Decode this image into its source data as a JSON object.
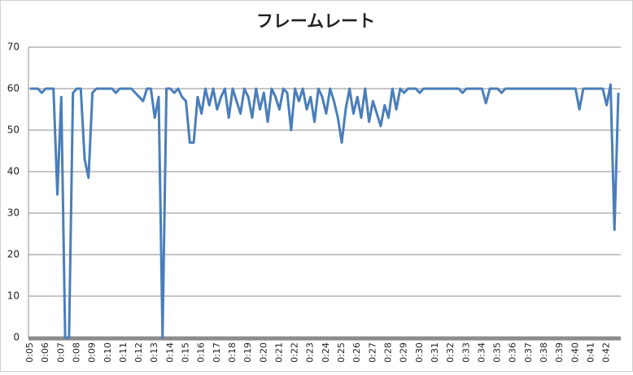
{
  "chart_data": {
    "type": "line",
    "title": "フレームレート",
    "categories": [
      "0:05",
      null,
      null,
      null,
      "0:06",
      null,
      null,
      null,
      "0:07",
      null,
      null,
      null,
      "0:08",
      null,
      null,
      null,
      "0:09",
      null,
      null,
      null,
      "0:10",
      null,
      null,
      null,
      "0:11",
      null,
      null,
      null,
      "0:12",
      null,
      null,
      null,
      "0:13",
      null,
      null,
      null,
      "0:14",
      null,
      null,
      null,
      "0:15",
      null,
      null,
      null,
      "0:16",
      null,
      null,
      null,
      "0:17",
      null,
      null,
      null,
      "0:18",
      null,
      null,
      null,
      "0:19",
      null,
      null,
      null,
      "0:20",
      null,
      null,
      null,
      "0:21",
      null,
      null,
      null,
      "0:22",
      null,
      null,
      null,
      "0:23",
      null,
      null,
      null,
      "0:24",
      null,
      null,
      null,
      "0:25",
      null,
      null,
      null,
      "0:26",
      null,
      null,
      null,
      "0:27",
      null,
      null,
      null,
      "0:28",
      null,
      null,
      null,
      "0:29",
      null,
      null,
      null,
      "0:30",
      null,
      null,
      null,
      "0:31",
      null,
      null,
      null,
      "0:32",
      null,
      null,
      null,
      "0:33",
      null,
      null,
      null,
      "0:34",
      null,
      null,
      null,
      "0:35",
      null,
      null,
      null,
      "0:36",
      null,
      null,
      null,
      "0:37",
      null,
      null,
      null,
      "0:38",
      null,
      null,
      null,
      "0:39",
      null,
      null,
      null,
      "0:40",
      null,
      null,
      null,
      "0:41",
      null,
      null,
      null,
      "0:42",
      null,
      null,
      null
    ],
    "series": [
      {
        "color": "#4a7ebb",
        "values": [
          60,
          60,
          60,
          59,
          60,
          60,
          60,
          34.5,
          58,
          0,
          0,
          59,
          60,
          60,
          43,
          38.5,
          59,
          60,
          60,
          60,
          60,
          60,
          59,
          60,
          60,
          60,
          60,
          59,
          58,
          57,
          60,
          60,
          53,
          58,
          0,
          60,
          60,
          59,
          60,
          58,
          57,
          47,
          47,
          58,
          54,
          60,
          56,
          60,
          55,
          58,
          60,
          53,
          60,
          57,
          54,
          60,
          58,
          53,
          60,
          55,
          59,
          52,
          60,
          58,
          55,
          60,
          59,
          50,
          60,
          57,
          60,
          55,
          58,
          52,
          60,
          58,
          54,
          60,
          57,
          53,
          47,
          55,
          60,
          54,
          58,
          53,
          60,
          52,
          57,
          54,
          51,
          56,
          53,
          60,
          55,
          60,
          59,
          60,
          60,
          60,
          59,
          60,
          60,
          60,
          60,
          60,
          60,
          60,
          60,
          60,
          60,
          59,
          60,
          60,
          60,
          60,
          60,
          56.5,
          60,
          60,
          60,
          59,
          60,
          60,
          60,
          60,
          60,
          60,
          60,
          60,
          60,
          60,
          60,
          60,
          60,
          60,
          60,
          60,
          60,
          60,
          60,
          55,
          60,
          60,
          60,
          60,
          60,
          60,
          56,
          61,
          26,
          59
        ]
      }
    ],
    "ylim": [
      0,
      70
    ],
    "yticks": [
      0,
      10,
      20,
      30,
      40,
      50,
      60,
      70
    ],
    "grid": true
  }
}
